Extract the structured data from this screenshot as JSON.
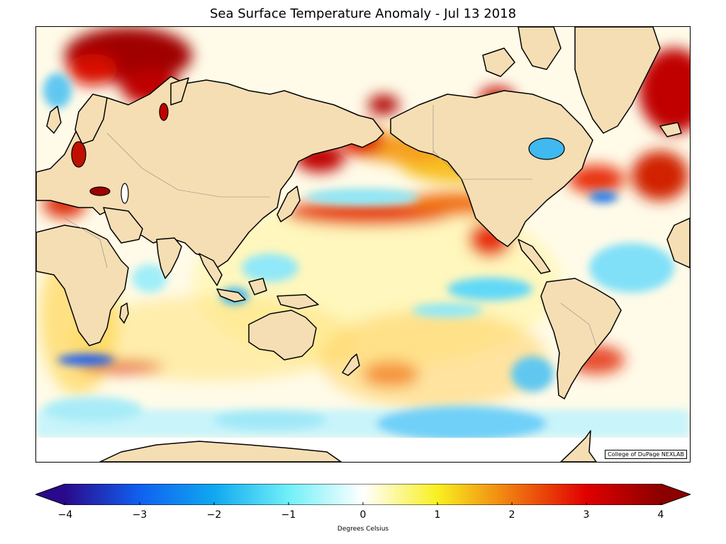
{
  "title": "Sea Surface Temperature Anomaly - Jul 13 2018",
  "credit": "College of DuPage NEXLAB",
  "colorbar": {
    "label": "Degrees Celsius",
    "range": [
      -4,
      4
    ],
    "ticks": [
      "−4",
      "−3",
      "−2",
      "−1",
      "0",
      "1",
      "2",
      "3",
      "4"
    ],
    "tick_values": [
      -4,
      -3,
      -2,
      -1,
      0,
      1,
      2,
      3,
      4
    ],
    "stops": [
      {
        "v": -4,
        "color": "#2a0a8c"
      },
      {
        "v": -3,
        "color": "#1060f0"
      },
      {
        "v": -2,
        "color": "#10a8f0"
      },
      {
        "v": -1,
        "color": "#70f0f8"
      },
      {
        "v": 0,
        "color": "#ffffff"
      },
      {
        "v": 1,
        "color": "#f8f020"
      },
      {
        "v": 2,
        "color": "#f07810"
      },
      {
        "v": 3,
        "color": "#e00000"
      },
      {
        "v": 4,
        "color": "#8c0000"
      }
    ]
  },
  "colors": {
    "land": "#f5deb3",
    "coast": "#000000",
    "ocean_neutral": "#fffde6"
  }
}
